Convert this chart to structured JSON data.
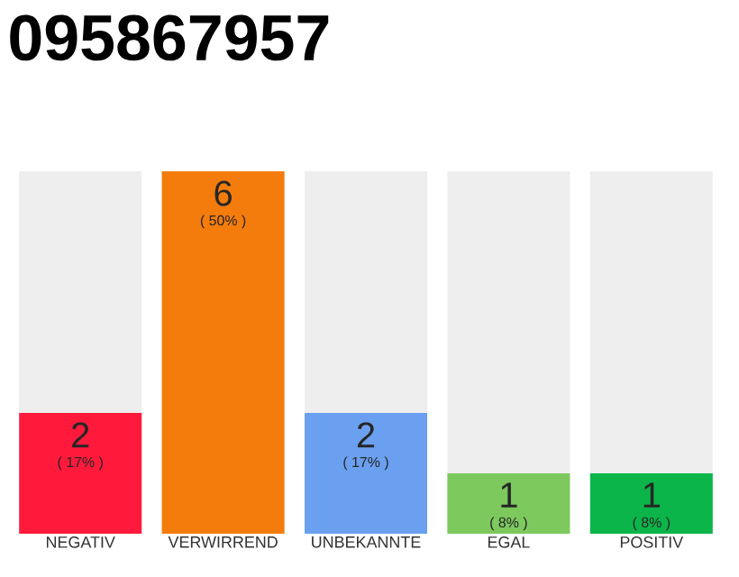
{
  "chart_data": {
    "type": "bar",
    "title": "095867957",
    "categories": [
      "NEGATIV",
      "VERWIRREND",
      "UNBEKANNTE",
      "EGAL",
      "POSITIV"
    ],
    "values": [
      2,
      6,
      2,
      1,
      1
    ],
    "colors": [
      "#ff1a3c",
      "#f47c0c",
      "#6aa0ef",
      "#7dc95e",
      "#0cb54a"
    ],
    "ylim": [
      0,
      6
    ],
    "data_labels": true,
    "annotations": [
      "( 17% )",
      "( 50% )",
      "( 17% )",
      "( 8% )",
      "( 8% )"
    ]
  }
}
